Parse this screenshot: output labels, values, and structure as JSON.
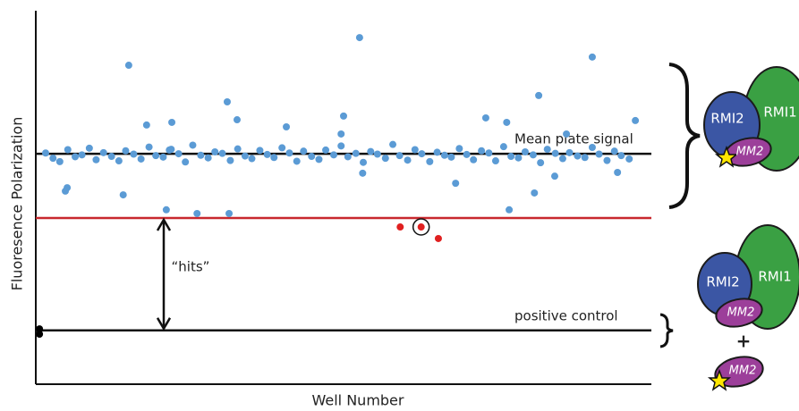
{
  "chart_data": {
    "type": "scatter",
    "xlabel": "Well Number",
    "ylabel": "Fluoresence Polarization",
    "xlim": [
      0,
      100
    ],
    "ylim": [
      0,
      100
    ],
    "series": [
      {
        "color": "#5b9bd5",
        "x": [
          1.6,
          2.8,
          3.9,
          5.2,
          6.4,
          7.5,
          8.7,
          9.8,
          11.0,
          12.3,
          13.5,
          14.6,
          15.9,
          17.1,
          18.4,
          19.5,
          20.7,
          22.0,
          23.2,
          24.3,
          25.5,
          26.8,
          28.0,
          29.1,
          30.3,
          31.6,
          32.8,
          34.0,
          35.1,
          36.4,
          37.6,
          38.7,
          40.0,
          41.2,
          42.4,
          43.5,
          44.8,
          46.0,
          47.1,
          48.4,
          49.6,
          50.7,
          52.0,
          53.2,
          54.4,
          55.5,
          56.8,
          58.0,
          59.1,
          60.4,
          61.6,
          62.7,
          64.0,
          65.2,
          66.4,
          67.5,
          68.8,
          70.0,
          71.1,
          72.4,
          73.6,
          74.7,
          76.0,
          77.2,
          78.4,
          79.5,
          80.8,
          82.0,
          83.1,
          84.4,
          85.6,
          86.7,
          88.0,
          89.2,
          90.4,
          91.5,
          92.8,
          94.0,
          95.1,
          96.4,
          52.6,
          15.1,
          90.4,
          81.7,
          31.1,
          50.0,
          73.1,
          76.5,
          32.7,
          97.4,
          18.0,
          22.1,
          40.7,
          49.6,
          86.2,
          21.7,
          14.2,
          5.1,
          4.8,
          81.0,
          68.2,
          21.2,
          26.2,
          31.4,
          76.9,
          53.1,
          94.5,
          84.3
        ],
        "values": [
          61.9,
          60.5,
          59.6,
          62.8,
          60.9,
          61.4,
          63.2,
          60.1,
          62.0,
          61.0,
          59.8,
          62.5,
          61.6,
          60.3,
          63.5,
          61.2,
          60.8,
          62.9,
          61.7,
          59.5,
          64.0,
          61.3,
          60.6,
          62.2,
          61.8,
          59.9,
          63.0,
          61.1,
          60.4,
          62.6,
          61.5,
          60.7,
          63.3,
          61.9,
          59.7,
          62.4,
          61.0,
          60.2,
          62.7,
          61.4,
          63.8,
          60.9,
          61.8,
          59.4,
          62.3,
          61.6,
          60.5,
          64.2,
          61.2,
          60.0,
          62.8,
          61.7,
          59.6,
          62.1,
          61.3,
          60.8,
          63.1,
          61.5,
          60.1,
          62.5,
          61.9,
          59.8,
          63.6,
          61.0,
          60.6,
          62.2,
          61.4,
          59.3,
          62.9,
          61.8,
          60.4,
          62.0,
          61.1,
          60.7,
          63.4,
          61.6,
          59.9,
          62.4,
          61.2,
          60.3,
          92.8,
          85.4,
          87.6,
          77.3,
          75.6,
          71.8,
          71.3,
          70.1,
          70.8,
          70.6,
          69.4,
          70.1,
          68.9,
          67.0,
          67.0,
          62.7,
          50.7,
          52.6,
          51.7,
          51.2,
          53.8,
          46.7,
          45.7,
          45.7,
          46.7,
          56.5,
          56.7,
          55.7
        ]
      },
      {
        "color": "#e02020",
        "x": [
          59.2,
          62.6,
          65.4
        ],
        "values": [
          42.1,
          42.1,
          39.0
        ],
        "circled": [
          1
        ]
      },
      {
        "color": "#000000",
        "x": [
          0.6,
          0.6
        ],
        "values": [
          14.8,
          13.4
        ]
      }
    ],
    "reference_lines": [
      {
        "value": 61.7,
        "color": "#111111",
        "label": "Mean plate signal"
      },
      {
        "value": 44.5,
        "color": "#c8282e"
      },
      {
        "value": 14.4,
        "color": "#111111",
        "label": "positive control"
      }
    ],
    "range_annotation": {
      "label": "“hits”",
      "from": 44.5,
      "to": 14.4
    }
  },
  "diagram": {
    "complex": {
      "rmi1": "RMI1",
      "rmi2": "RMI2",
      "mm2": "MM2"
    },
    "separate": {
      "rmi1": "RMI1",
      "rmi2": "RMI2",
      "plus": "+",
      "mm2": "MM2"
    }
  }
}
